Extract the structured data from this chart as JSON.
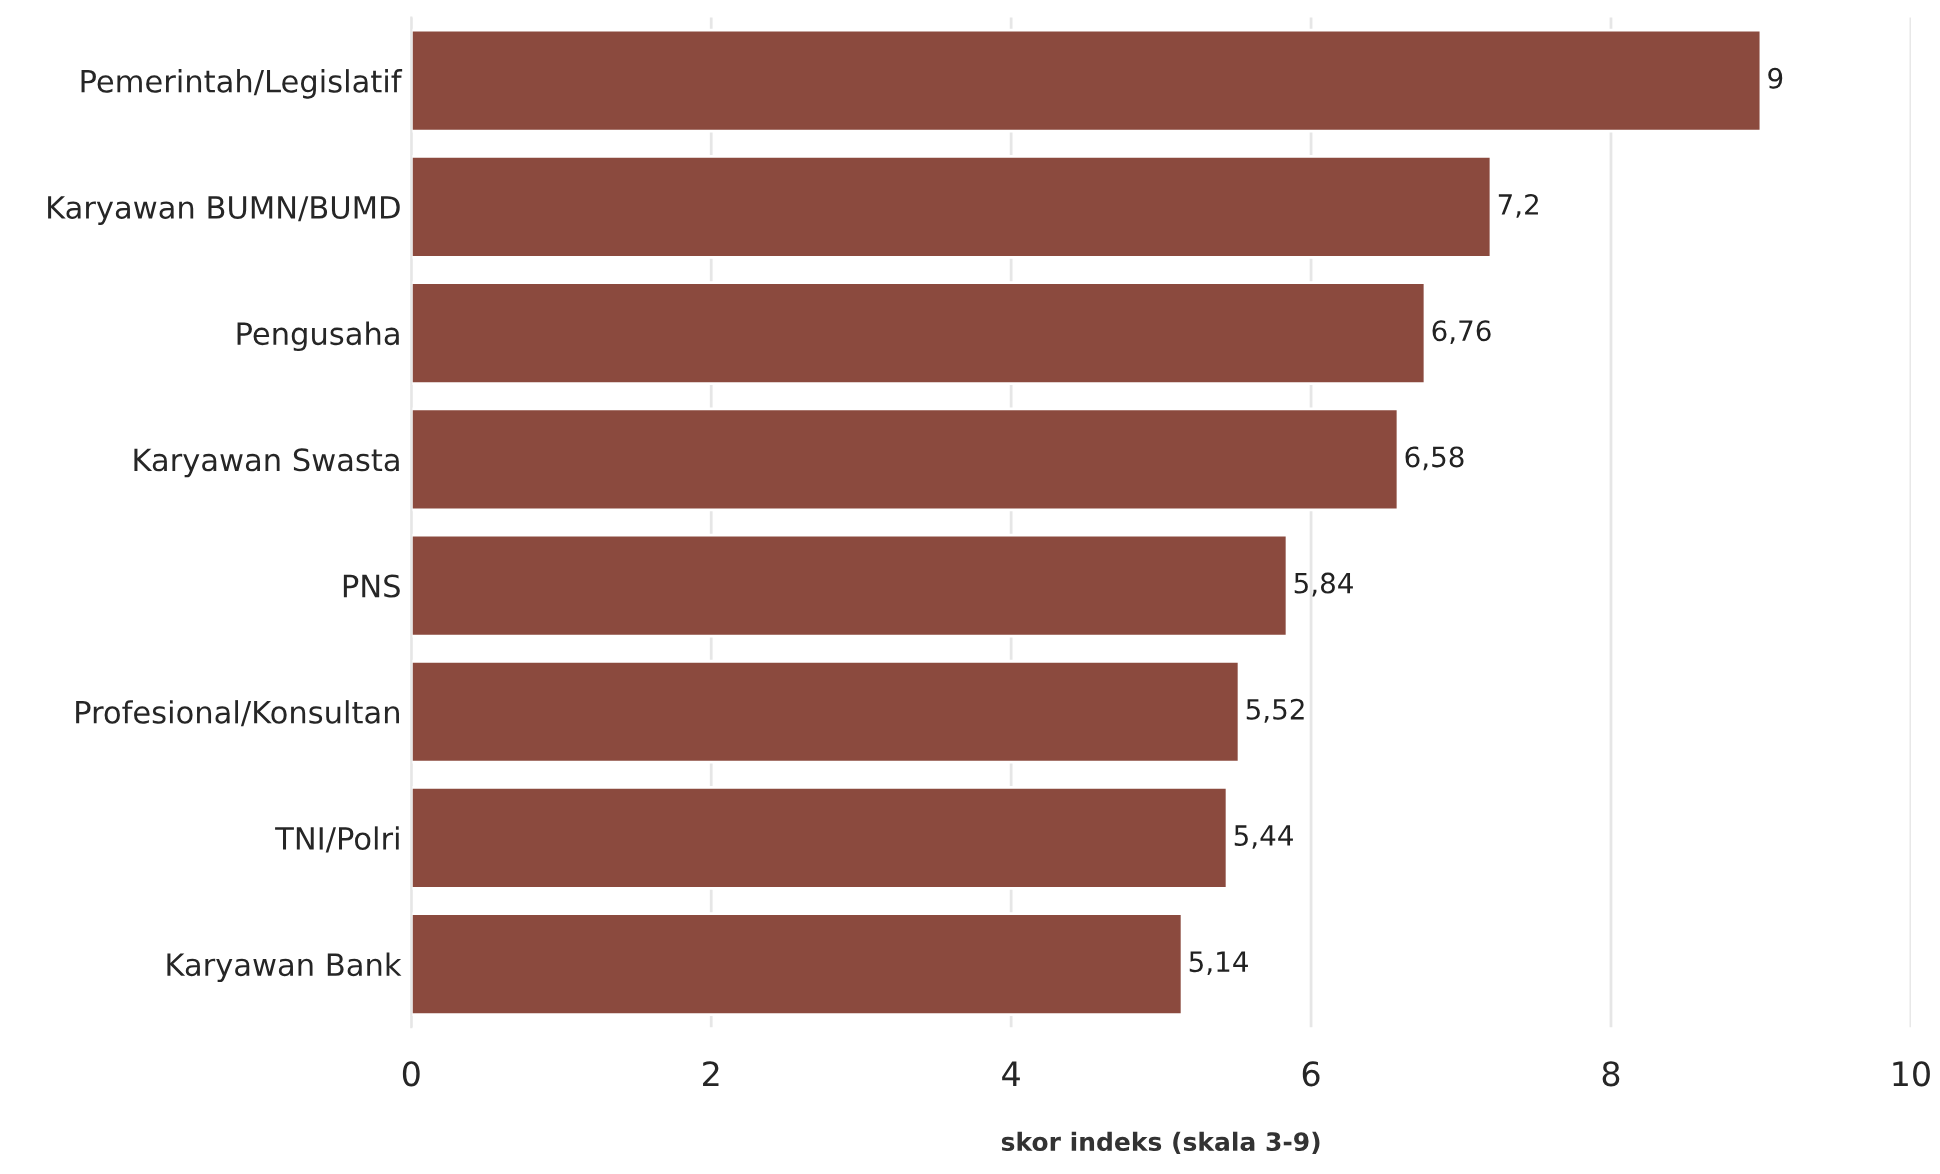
{
  "chart_data": {
    "type": "bar",
    "orientation": "horizontal",
    "xlabel": "skor indeks (skala 3-9)",
    "categories": [
      "Pemerintah/Legislatif",
      "Karyawan BUMN/BUMD",
      "Pengusaha",
      "Karyawan Swasta",
      "PNS",
      "Profesional/Konsultan",
      "TNI/Polri",
      "Karyawan Bank"
    ],
    "values": [
      9,
      7.2,
      6.76,
      6.58,
      5.84,
      5.52,
      5.44,
      5.14
    ],
    "value_labels": [
      "9",
      "7,2",
      "6,76",
      "6,58",
      "5,84",
      "5,52",
      "5,44",
      "5,14"
    ],
    "color": "#8b4a3e",
    "xlim": [
      0,
      10
    ],
    "xticks": [
      0,
      2,
      4,
      6,
      8,
      10
    ],
    "grid": "x",
    "legend": false
  }
}
